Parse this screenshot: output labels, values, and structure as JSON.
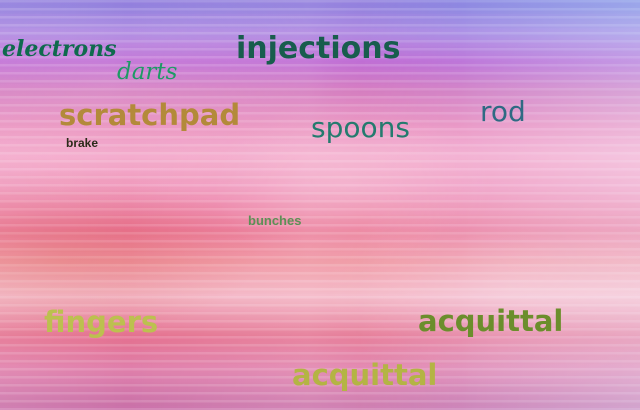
{
  "scene": {
    "words": [
      "electrons",
      "darts",
      "injections",
      "scratchpad",
      "brake",
      "spoons",
      "rod",
      "bunches",
      "fingers",
      "acquittal",
      "acquittal"
    ]
  }
}
